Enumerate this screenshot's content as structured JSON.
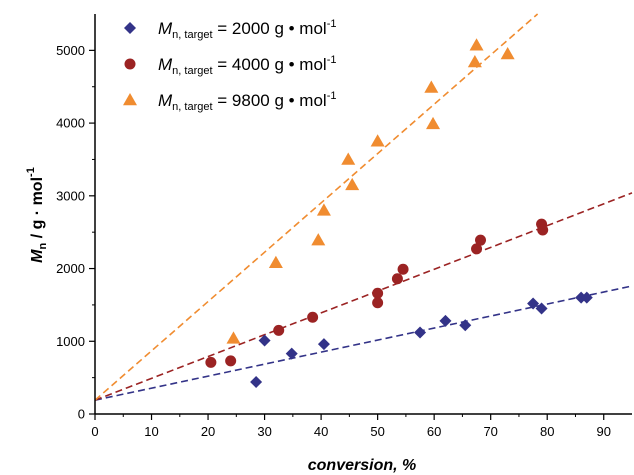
{
  "chart_data": {
    "type": "scatter",
    "xlabel": "conversion, %",
    "ylabel": {
      "main": "M",
      "sub": "n",
      "rest": " / g · mol",
      "sup": "-1"
    },
    "xlim": [
      0,
      95
    ],
    "ylim": [
      0,
      5500
    ],
    "xticks": [
      0,
      10,
      20,
      30,
      40,
      50,
      60,
      70,
      80,
      90
    ],
    "yticks": [
      0,
      1000,
      2000,
      3000,
      4000,
      5000
    ],
    "legend_position": "top-left",
    "series": [
      {
        "name": "Mn, target = 2000 g • mol-1",
        "label": {
          "main": "M",
          "sub": "n, target",
          "rest": " = 2000 g • mol",
          "sup": "-1"
        },
        "marker": "diamond",
        "color": "#333388",
        "x": [
          28.5,
          30.0,
          34.8,
          40.5,
          57.5,
          62.0,
          65.5,
          77.5,
          79.0,
          86.0,
          87.0
        ],
        "y": [
          440,
          1010,
          830,
          960,
          1120,
          1280,
          1220,
          1520,
          1450,
          1600,
          1600
        ],
        "fit": {
          "x": [
            0,
            95
          ],
          "y": [
            190,
            1760
          ],
          "color": "#333388"
        }
      },
      {
        "name": "Mn, target = 4000 g • mol-1",
        "label": {
          "main": "M",
          "sub": "n, target",
          "rest": " = 4000 g • mol",
          "sup": "-1"
        },
        "marker": "circle",
        "color": "#9b2323",
        "x": [
          20.5,
          24.0,
          32.5,
          38.5,
          50.0,
          50.0,
          53.5,
          54.5,
          67.5,
          68.2,
          79.0,
          79.2
        ],
        "y": [
          710,
          730,
          1150,
          1330,
          1660,
          1530,
          1860,
          1990,
          2270,
          2390,
          2610,
          2530
        ],
        "fit": {
          "x": [
            0,
            95
          ],
          "y": [
            190,
            3040
          ],
          "color": "#9b2323"
        }
      },
      {
        "name": "Mn, target = 9800 g • mol-1",
        "label": {
          "main": "M",
          "sub": "n, target",
          "rest": " = 9800 g • mol",
          "sup": "-1"
        },
        "marker": "triangle",
        "color": "#f08c30",
        "x": [
          24.5,
          32.0,
          39.5,
          40.5,
          44.8,
          45.5,
          50.0,
          59.5,
          59.8,
          67.2,
          67.5,
          73.0
        ],
        "y": [
          1040,
          2080,
          2390,
          2800,
          3500,
          3150,
          3750,
          4490,
          3990,
          4840,
          5070,
          4950
        ],
        "fit": {
          "x": [
            0,
            78.3
          ],
          "y": [
            190,
            5500
          ],
          "color": "#f08c30"
        }
      }
    ]
  }
}
